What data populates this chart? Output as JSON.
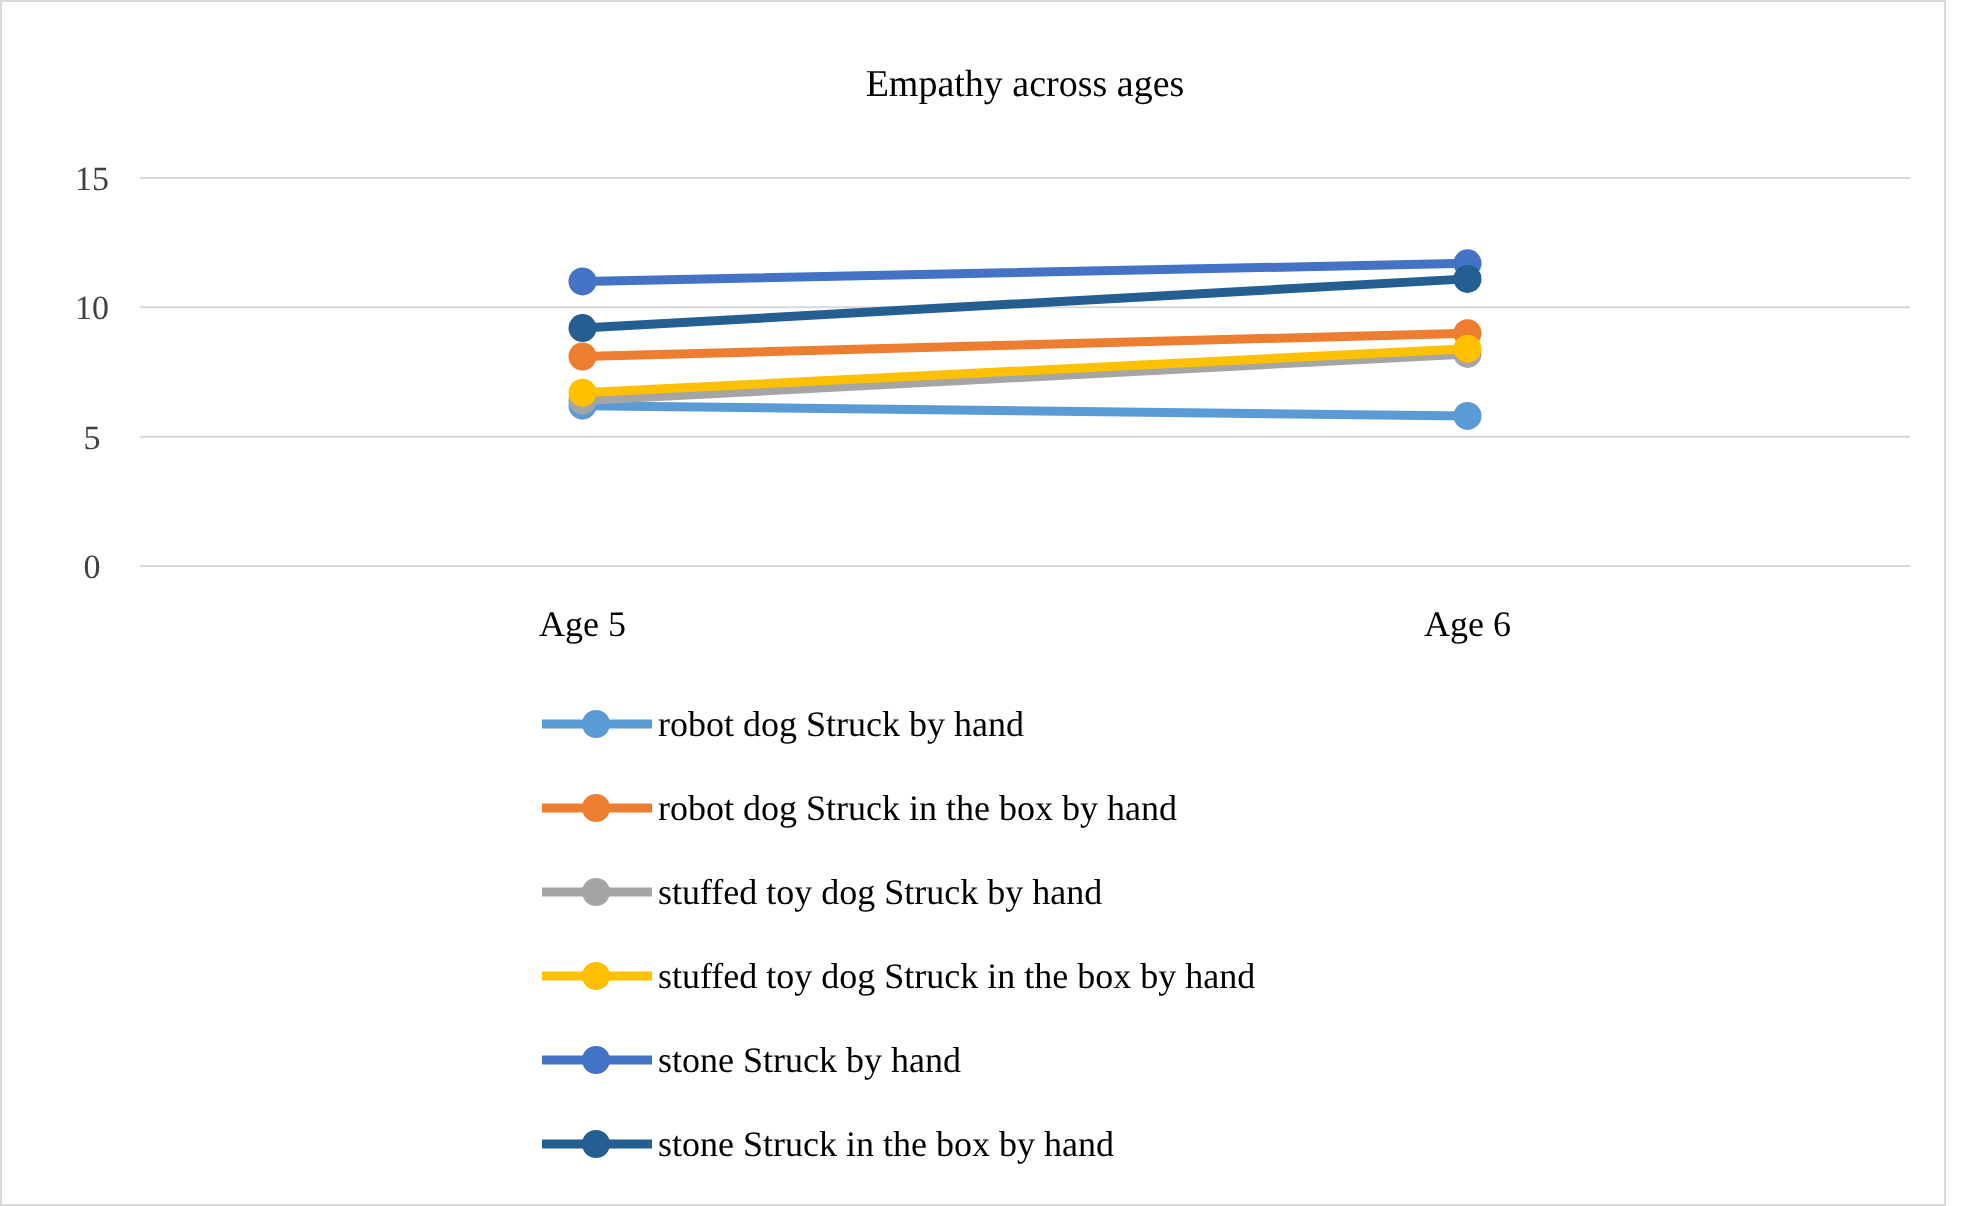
{
  "chart_data": {
    "type": "line",
    "title": "Empathy across ages",
    "categories": [
      "Age 5",
      "Age 6"
    ],
    "series": [
      {
        "name": "robot dog Struck by hand",
        "color": "#5b9bd5",
        "values": [
          6.2,
          5.8
        ]
      },
      {
        "name": "robot dog Struck in the box by hand",
        "color": "#ed7d31",
        "values": [
          8.1,
          9.0
        ]
      },
      {
        "name": "stuffed toy dog Struck by hand",
        "color": "#a5a5a5",
        "values": [
          6.4,
          8.2
        ]
      },
      {
        "name": "stuffed toy dog Struck in the box by hand",
        "color": "#ffc000",
        "values": [
          6.7,
          8.4
        ]
      },
      {
        "name": "stone Struck by hand",
        "color": "#4472c4",
        "values": [
          11.0,
          11.7
        ]
      },
      {
        "name": "stone Struck in the box by hand",
        "color": "#255e91",
        "values": [
          9.2,
          11.1
        ]
      }
    ],
    "ylim": [
      0,
      15
    ],
    "yticks": [
      0,
      5,
      10,
      15
    ],
    "grid": "y",
    "legend": "bottom",
    "marker": "circle",
    "line_style": "solid"
  }
}
